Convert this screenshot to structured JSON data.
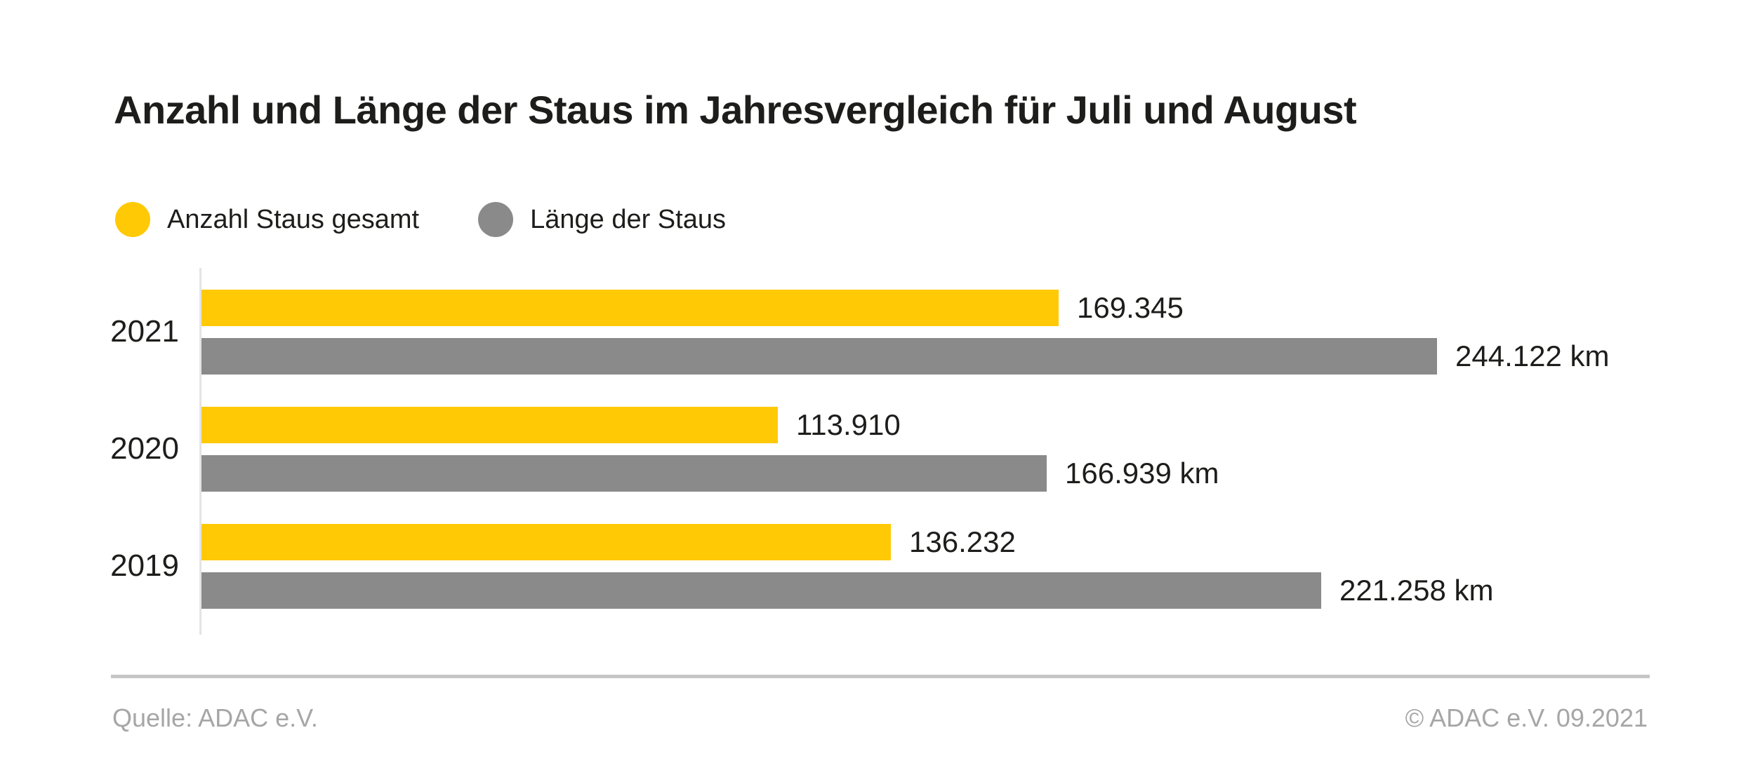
{
  "title": "Anzahl und Länge der Staus im Jahresvergleich für Juli und August",
  "legend": {
    "items": [
      {
        "label": "Anzahl Staus gesamt",
        "color": "#FFC905"
      },
      {
        "label": "Länge der Staus",
        "color": "#8A8A8A"
      }
    ]
  },
  "chart_data": {
    "type": "bar",
    "orientation": "horizontal",
    "title": "Anzahl und Länge der Staus im Jahresvergleich für Juli und August",
    "categories": [
      "2021",
      "2020",
      "2019"
    ],
    "series": [
      {
        "name": "Anzahl Staus gesamt",
        "color": "#FFC905",
        "values": [
          169345,
          113910,
          136232
        ],
        "value_labels": [
          "169.345",
          "113.910",
          "136.232"
        ]
      },
      {
        "name": "Länge der Staus",
        "color": "#8A8A8A",
        "values": [
          244122,
          166939,
          221258
        ],
        "value_labels": [
          "244.122 km",
          "166.939 km",
          "221.258 km"
        ]
      }
    ],
    "x_axis_max": 244122,
    "grid": false,
    "axis_line_color": "#E4E4E4",
    "legend_position": "top-left",
    "value_label_position": "outside-end"
  },
  "footer": {
    "source": "Quelle: ADAC e.V.",
    "copyright": "© ADAC e.V. 09.2021"
  }
}
